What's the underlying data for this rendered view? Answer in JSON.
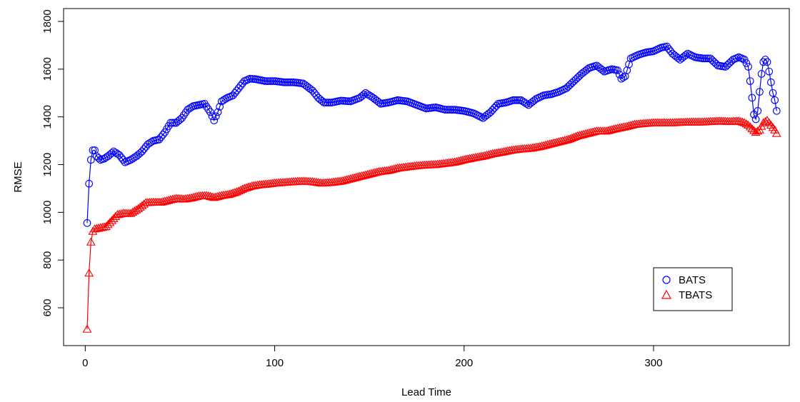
{
  "chart_data": {
    "type": "line",
    "title": "",
    "xlabel": "Lead Time",
    "ylabel": "RMSE",
    "xlim": [
      1,
      365
    ],
    "ylim": [
      450,
      1850
    ],
    "xticks": [
      0,
      100,
      200,
      300
    ],
    "yticks": [
      600,
      800,
      1000,
      1200,
      1400,
      1600,
      1800
    ],
    "grid": false,
    "legend_position": "bottom-right",
    "series": [
      {
        "name": "BATS",
        "color": "#0000ff",
        "marker": "circle",
        "points": [
          [
            1,
            955
          ],
          [
            2,
            1120
          ],
          [
            3,
            1220
          ],
          [
            4,
            1260
          ],
          [
            5,
            1260
          ],
          [
            6,
            1235
          ],
          [
            8,
            1220
          ],
          [
            10,
            1225
          ],
          [
            12,
            1235
          ],
          [
            15,
            1255
          ],
          [
            18,
            1240
          ],
          [
            21,
            1210
          ],
          [
            24,
            1220
          ],
          [
            27,
            1235
          ],
          [
            30,
            1255
          ],
          [
            33,
            1285
          ],
          [
            36,
            1300
          ],
          [
            39,
            1305
          ],
          [
            42,
            1335
          ],
          [
            45,
            1375
          ],
          [
            48,
            1375
          ],
          [
            51,
            1395
          ],
          [
            54,
            1430
          ],
          [
            57,
            1445
          ],
          [
            60,
            1450
          ],
          [
            63,
            1455
          ],
          [
            66,
            1420
          ],
          [
            68,
            1385
          ],
          [
            70,
            1420
          ],
          [
            72,
            1465
          ],
          [
            75,
            1480
          ],
          [
            78,
            1490
          ],
          [
            81,
            1520
          ],
          [
            84,
            1550
          ],
          [
            87,
            1560
          ],
          [
            90,
            1558
          ],
          [
            95,
            1550
          ],
          [
            100,
            1550
          ],
          [
            105,
            1545
          ],
          [
            110,
            1545
          ],
          [
            115,
            1540
          ],
          [
            120,
            1510
          ],
          [
            123,
            1480
          ],
          [
            126,
            1460
          ],
          [
            130,
            1460
          ],
          [
            135,
            1468
          ],
          [
            140,
            1465
          ],
          [
            145,
            1480
          ],
          [
            148,
            1500
          ],
          [
            152,
            1480
          ],
          [
            156,
            1455
          ],
          [
            160,
            1460
          ],
          [
            165,
            1470
          ],
          [
            170,
            1465
          ],
          [
            175,
            1450
          ],
          [
            180,
            1435
          ],
          [
            185,
            1440
          ],
          [
            190,
            1430
          ],
          [
            195,
            1430
          ],
          [
            200,
            1425
          ],
          [
            205,
            1415
          ],
          [
            210,
            1395
          ],
          [
            214,
            1420
          ],
          [
            218,
            1455
          ],
          [
            222,
            1460
          ],
          [
            226,
            1470
          ],
          [
            230,
            1470
          ],
          [
            234,
            1450
          ],
          [
            238,
            1475
          ],
          [
            242,
            1490
          ],
          [
            246,
            1495
          ],
          [
            250,
            1505
          ],
          [
            254,
            1520
          ],
          [
            258,
            1550
          ],
          [
            262,
            1580
          ],
          [
            266,
            1605
          ],
          [
            270,
            1615
          ],
          [
            274,
            1590
          ],
          [
            278,
            1600
          ],
          [
            281,
            1595
          ],
          [
            283,
            1560
          ],
          [
            285,
            1570
          ],
          [
            288,
            1645
          ],
          [
            292,
            1660
          ],
          [
            296,
            1670
          ],
          [
            300,
            1675
          ],
          [
            304,
            1690
          ],
          [
            307,
            1695
          ],
          [
            310,
            1665
          ],
          [
            314,
            1640
          ],
          [
            318,
            1665
          ],
          [
            322,
            1650
          ],
          [
            326,
            1645
          ],
          [
            330,
            1645
          ],
          [
            334,
            1615
          ],
          [
            338,
            1610
          ],
          [
            342,
            1640
          ],
          [
            345,
            1650
          ],
          [
            348,
            1640
          ],
          [
            350,
            1610
          ],
          [
            351,
            1550
          ],
          [
            352,
            1480
          ],
          [
            353,
            1410
          ],
          [
            354,
            1390
          ],
          [
            355,
            1425
          ],
          [
            356,
            1505
          ],
          [
            357,
            1580
          ],
          [
            358,
            1630
          ],
          [
            359,
            1640
          ],
          [
            360,
            1630
          ],
          [
            361,
            1590
          ],
          [
            362,
            1545
          ],
          [
            363,
            1500
          ],
          [
            364,
            1470
          ],
          [
            365,
            1425
          ]
        ]
      },
      {
        "name": "TBATS",
        "color": "#ff0000",
        "marker": "triangle",
        "points": [
          [
            1,
            510
          ],
          [
            2,
            745
          ],
          [
            3,
            875
          ],
          [
            4,
            920
          ],
          [
            5,
            930
          ],
          [
            8,
            935
          ],
          [
            11,
            940
          ],
          [
            14,
            965
          ],
          [
            17,
            990
          ],
          [
            20,
            995
          ],
          [
            24,
            995
          ],
          [
            28,
            1015
          ],
          [
            32,
            1040
          ],
          [
            36,
            1042
          ],
          [
            40,
            1042
          ],
          [
            44,
            1050
          ],
          [
            48,
            1058
          ],
          [
            52,
            1055
          ],
          [
            56,
            1060
          ],
          [
            60,
            1068
          ],
          [
            64,
            1070
          ],
          [
            68,
            1062
          ],
          [
            72,
            1070
          ],
          [
            76,
            1075
          ],
          [
            80,
            1085
          ],
          [
            84,
            1100
          ],
          [
            88,
            1110
          ],
          [
            92,
            1115
          ],
          [
            96,
            1118
          ],
          [
            100,
            1122
          ],
          [
            105,
            1125
          ],
          [
            110,
            1128
          ],
          [
            115,
            1130
          ],
          [
            120,
            1128
          ],
          [
            125,
            1122
          ],
          [
            130,
            1125
          ],
          [
            135,
            1130
          ],
          [
            140,
            1140
          ],
          [
            145,
            1150
          ],
          [
            150,
            1160
          ],
          [
            155,
            1170
          ],
          [
            160,
            1175
          ],
          [
            165,
            1185
          ],
          [
            170,
            1190
          ],
          [
            175,
            1195
          ],
          [
            180,
            1198
          ],
          [
            185,
            1200
          ],
          [
            190,
            1205
          ],
          [
            195,
            1210
          ],
          [
            200,
            1220
          ],
          [
            205,
            1228
          ],
          [
            210,
            1235
          ],
          [
            215,
            1245
          ],
          [
            220,
            1252
          ],
          [
            225,
            1260
          ],
          [
            230,
            1265
          ],
          [
            235,
            1268
          ],
          [
            240,
            1275
          ],
          [
            245,
            1285
          ],
          [
            250,
            1295
          ],
          [
            255,
            1305
          ],
          [
            260,
            1320
          ],
          [
            265,
            1330
          ],
          [
            270,
            1340
          ],
          [
            275,
            1340
          ],
          [
            280,
            1350
          ],
          [
            285,
            1358
          ],
          [
            290,
            1368
          ],
          [
            295,
            1372
          ],
          [
            300,
            1375
          ],
          [
            305,
            1375
          ],
          [
            310,
            1375
          ],
          [
            315,
            1377
          ],
          [
            320,
            1378
          ],
          [
            325,
            1378
          ],
          [
            330,
            1380
          ],
          [
            335,
            1382
          ],
          [
            340,
            1380
          ],
          [
            345,
            1382
          ],
          [
            348,
            1375
          ],
          [
            350,
            1365
          ],
          [
            352,
            1350
          ],
          [
            354,
            1335
          ],
          [
            356,
            1345
          ],
          [
            358,
            1375
          ],
          [
            360,
            1385
          ],
          [
            362,
            1365
          ],
          [
            364,
            1345
          ],
          [
            365,
            1330
          ]
        ]
      }
    ]
  }
}
